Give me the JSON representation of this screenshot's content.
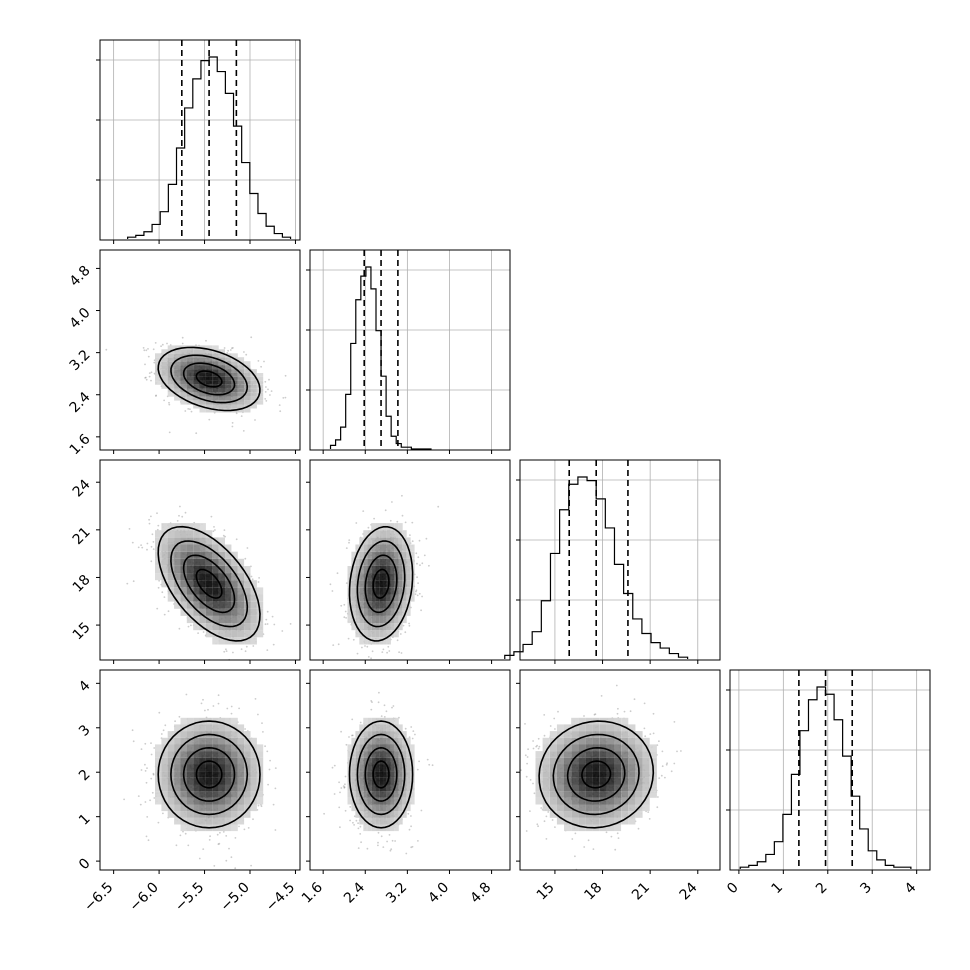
{
  "chart_data": {
    "type": "corner",
    "title": "",
    "parameters": [
      {
        "range": [
          -6.65,
          -4.45
        ],
        "ticks": [
          -6.5,
          -6.0,
          -5.5,
          -5.0,
          -4.5
        ],
        "tick_labels": [
          "−6.5",
          "−6.0",
          "−5.5",
          "−5.0",
          "−4.5"
        ],
        "median": -5.45,
        "q16": -5.75,
        "q84": -5.15,
        "std": 0.28
      },
      {
        "range": [
          1.35,
          5.15
        ],
        "ticks": [
          1.6,
          2.4,
          3.2,
          4.0,
          4.8
        ],
        "tick_labels": [
          "1.6",
          "2.4",
          "3.2",
          "4.0",
          "4.8"
        ],
        "median": 2.7,
        "q16": 2.38,
        "q84": 3.02,
        "std": 0.3
      },
      {
        "range": [
          12.8,
          25.4
        ],
        "ticks": [
          15,
          18,
          21,
          24
        ],
        "tick_labels": [
          "15",
          "18",
          "21",
          "24"
        ],
        "median": 17.6,
        "q16": 15.9,
        "q84": 19.6,
        "std": 1.8
      },
      {
        "range": [
          -0.2,
          4.3
        ],
        "ticks": [
          0,
          1,
          2,
          3,
          4
        ],
        "tick_labels": [
          "0",
          "1",
          "2",
          "3",
          "4"
        ],
        "median": 1.95,
        "q16": 1.35,
        "q84": 2.55,
        "std": 0.6
      }
    ],
    "correlations": [
      [
        1,
        -0.35,
        -0.55,
        0.0
      ],
      [
        -0.35,
        1,
        0.15,
        0.0
      ],
      [
        -0.55,
        0.15,
        1,
        0.05
      ],
      [
        0.0,
        0.0,
        0.05,
        1
      ]
    ],
    "histograms": [
      [
        0.01,
        0.02,
        0.04,
        0.08,
        0.15,
        0.3,
        0.5,
        0.72,
        0.88,
        0.98,
        1.0,
        0.92,
        0.8,
        0.62,
        0.42,
        0.25,
        0.14,
        0.07,
        0.03,
        0.01
      ],
      [
        0.02,
        0.05,
        0.12,
        0.3,
        0.58,
        0.82,
        0.95,
        1.0,
        0.88,
        0.65,
        0.4,
        0.18,
        0.07,
        0.03,
        0.01,
        0.01,
        0.0,
        0.0,
        0.0,
        0.0
      ],
      [
        0.02,
        0.04,
        0.08,
        0.15,
        0.32,
        0.58,
        0.82,
        0.96,
        1.0,
        0.98,
        0.88,
        0.72,
        0.52,
        0.36,
        0.22,
        0.14,
        0.09,
        0.06,
        0.03,
        0.01
      ],
      [
        0.01,
        0.02,
        0.04,
        0.08,
        0.15,
        0.3,
        0.52,
        0.76,
        0.93,
        1.0,
        0.96,
        0.82,
        0.62,
        0.4,
        0.22,
        0.1,
        0.05,
        0.02,
        0.01,
        0.01
      ]
    ]
  }
}
